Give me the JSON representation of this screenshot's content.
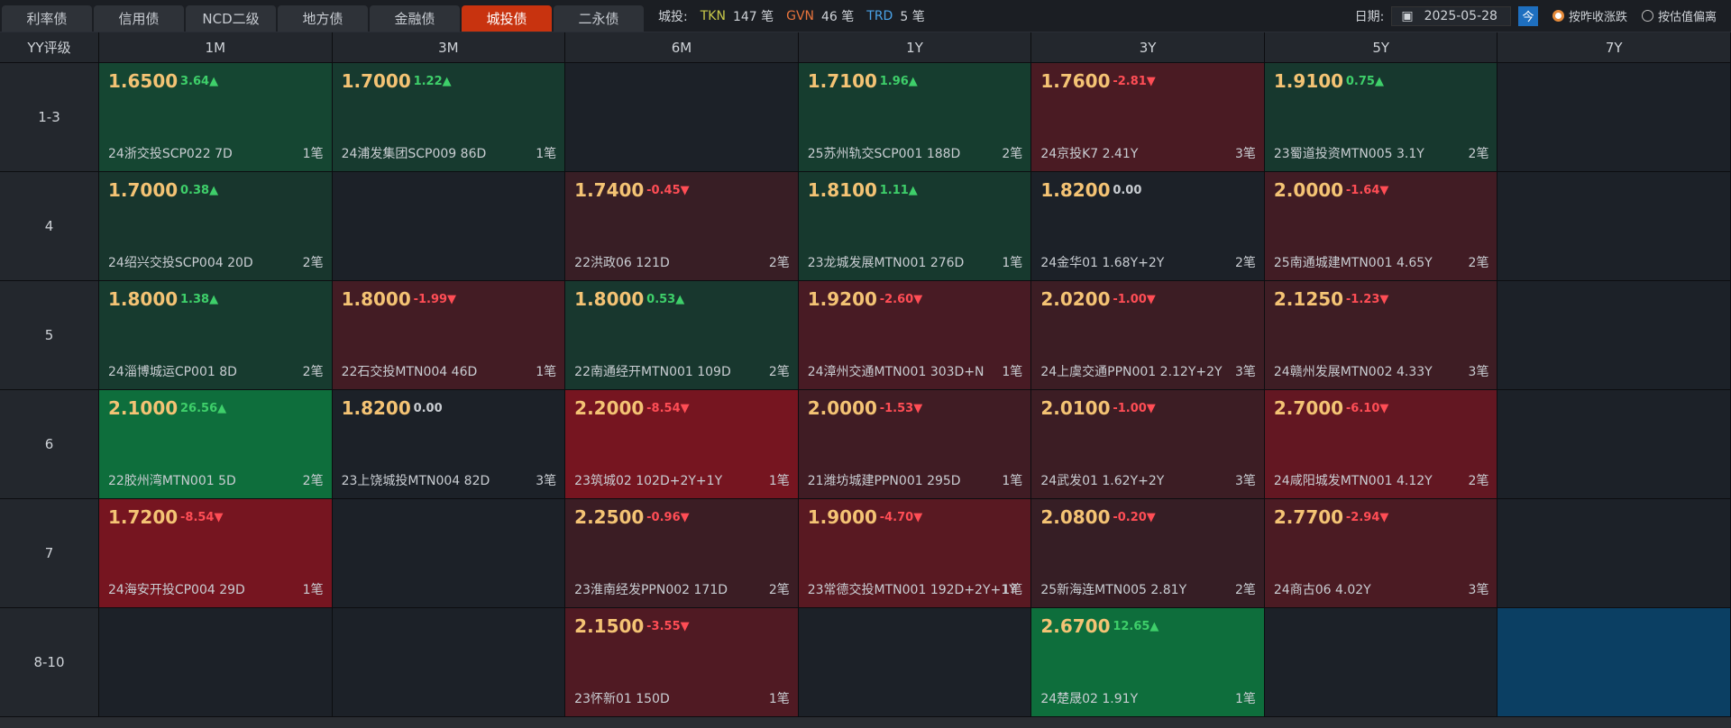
{
  "tabs": [
    {
      "label": "利率债"
    },
    {
      "label": "信用债"
    },
    {
      "label": "NCD二级"
    },
    {
      "label": "地方债"
    },
    {
      "label": "金融债"
    },
    {
      "label": "城投债",
      "active": true
    },
    {
      "label": "二永债"
    }
  ],
  "toolbar": {
    "label": "城投:",
    "stats": [
      {
        "name": "TKN",
        "count": "147 笔",
        "color": "#c9c94a"
      },
      {
        "name": "GVN",
        "count": "46 笔",
        "color": "#e8743c"
      },
      {
        "name": "TRD",
        "count": "5 笔",
        "color": "#4aa3e8"
      }
    ],
    "date_label": "日期:",
    "date": "2025-05-28",
    "today": "今",
    "radios": [
      {
        "label": "按昨收涨跌",
        "checked": true
      },
      {
        "label": "按估值偏离",
        "checked": false
      }
    ]
  },
  "grid": {
    "corner": "YY评级",
    "columns": [
      "1M",
      "3M",
      "6M",
      "1Y",
      "3Y",
      "5Y",
      "7Y"
    ],
    "rows": [
      {
        "label": "1-3",
        "cells": [
          {
            "price": "1.6500",
            "change": "3.64▲",
            "bond": "24浙交投SCP022 7D",
            "count": "1笔"
          },
          {
            "price": "1.7000",
            "change": "1.22▲",
            "bond": "24浦发集团SCP009 86D",
            "count": "1笔"
          },
          null,
          {
            "price": "1.7100",
            "change": "1.96▲",
            "bond": "25苏州轨交SCP001 188D",
            "count": "2笔"
          },
          {
            "price": "1.7600",
            "change": "-2.81▼",
            "bond": "24京投K7 2.41Y",
            "count": "3笔"
          },
          {
            "price": "1.9100",
            "change": "0.75▲",
            "bond": "23蜀道投资MTN005 3.1Y",
            "count": "2笔"
          },
          null
        ]
      },
      {
        "label": "4",
        "cells": [
          {
            "price": "1.7000",
            "change": "0.38▲",
            "bond": "24绍兴交投SCP004 20D",
            "count": "2笔"
          },
          null,
          {
            "price": "1.7400",
            "change": "-0.45▼",
            "bond": "22洪政06 121D",
            "count": "2笔"
          },
          {
            "price": "1.8100",
            "change": "1.11▲",
            "bond": "23龙城发展MTN001 276D",
            "count": "1笔"
          },
          {
            "price": "1.8200",
            "change": "0.00",
            "bond": "24金华01 1.68Y+2Y",
            "count": "2笔"
          },
          {
            "price": "2.0000",
            "change": "-1.64▼",
            "bond": "25南通城建MTN001 4.65Y",
            "count": "2笔"
          },
          null
        ]
      },
      {
        "label": "5",
        "cells": [
          {
            "price": "1.8000",
            "change": "1.38▲",
            "bond": "24淄博城运CP001 8D",
            "count": "2笔"
          },
          {
            "price": "1.8000",
            "change": "-1.99▼",
            "bond": "22石交投MTN004 46D",
            "count": "1笔"
          },
          {
            "price": "1.8000",
            "change": "0.53▲",
            "bond": "22南通经开MTN001 109D",
            "count": "2笔"
          },
          {
            "price": "1.9200",
            "change": "-2.60▼",
            "bond": "24漳州交通MTN001 303D+N",
            "count": "1笔"
          },
          {
            "price": "2.0200",
            "change": "-1.00▼",
            "bond": "24上虞交通PPN001 2.12Y+2Y",
            "count": "3笔"
          },
          {
            "price": "2.1250",
            "change": "-1.23▼",
            "bond": "24赣州发展MTN002 4.33Y",
            "count": "3笔"
          },
          null
        ]
      },
      {
        "label": "6",
        "cells": [
          {
            "price": "2.1000",
            "change": "26.56▲",
            "bond": "22胶州湾MTN001 5D",
            "count": "2笔"
          },
          {
            "price": "1.8200",
            "change": "0.00",
            "bond": "23上饶城投MTN004 82D",
            "count": "3笔"
          },
          {
            "price": "2.2000",
            "change": "-8.54▼",
            "bond": "23筑城02 102D+2Y+1Y",
            "count": "1笔"
          },
          {
            "price": "2.0000",
            "change": "-1.53▼",
            "bond": "21潍坊城建PPN001 295D",
            "count": "1笔"
          },
          {
            "price": "2.0100",
            "change": "-1.00▼",
            "bond": "24武发01 1.62Y+2Y",
            "count": "3笔"
          },
          {
            "price": "2.7000",
            "change": "-6.10▼",
            "bond": "24咸阳城发MTN001 4.12Y",
            "count": "2笔"
          },
          null
        ]
      },
      {
        "label": "7",
        "cells": [
          {
            "price": "1.7200",
            "change": "-8.54▼",
            "bond": "24海安开投CP004 29D",
            "count": "1笔"
          },
          null,
          {
            "price": "2.2500",
            "change": "-0.96▼",
            "bond": "23淮南经发PPN002 171D",
            "count": "2笔"
          },
          {
            "price": "1.9000",
            "change": "-4.70▼",
            "bond": "23常德交投MTN001 192D+2Y+1Y",
            "count": "1笔"
          },
          {
            "price": "2.0800",
            "change": "-0.20▼",
            "bond": "25新海连MTN005 2.81Y",
            "count": "2笔"
          },
          {
            "price": "2.7700",
            "change": "-2.94▼",
            "bond": "24商古06 4.02Y",
            "count": "3笔"
          },
          null
        ]
      },
      {
        "label": "8-10",
        "cells": [
          null,
          null,
          {
            "price": "2.1500",
            "change": "-3.55▼",
            "bond": "23怀新01 150D",
            "count": "1笔"
          },
          null,
          {
            "price": "2.6700",
            "change": "12.65▲",
            "bond": "24楚晟02 1.91Y",
            "count": "1笔"
          },
          null,
          null
        ]
      }
    ]
  }
}
